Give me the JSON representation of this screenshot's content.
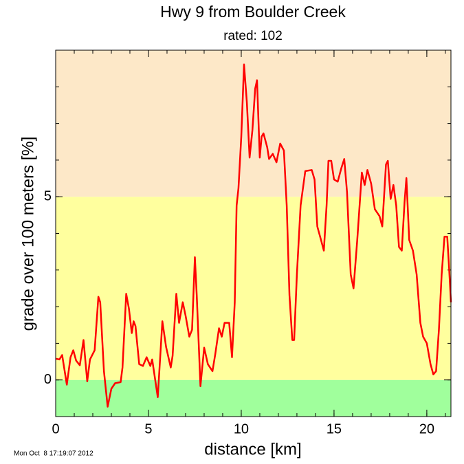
{
  "chart_data": {
    "type": "line",
    "title": "Hwy 9 from Boulder Creek",
    "subtitle": "rated: 102",
    "x_label": "distance [km]",
    "y_label": "grade over 100 meters [%]",
    "timestamp": "Mon Oct  8 17:19:07 2012",
    "xlim": [
      0,
      21.3
    ],
    "ylim": [
      -1,
      9
    ],
    "xticks": [
      0,
      5,
      10,
      15,
      20
    ],
    "yticks": [
      0,
      5
    ],
    "xminorticks": [
      0,
      1,
      2,
      3,
      4,
      5,
      6,
      7,
      8,
      9,
      10,
      11,
      12,
      13,
      14,
      15,
      16,
      17,
      18,
      19,
      20,
      21
    ],
    "yminorticks": [
      -1,
      0,
      1,
      2,
      3,
      4,
      5,
      6,
      7,
      8,
      9
    ],
    "bands": [
      {
        "from": -1,
        "to": 0,
        "color": "#a0ff9c"
      },
      {
        "from": 0,
        "to": 5,
        "color": "#ffff9e"
      },
      {
        "from": 5,
        "to": 9,
        "color": "#fde8c8"
      }
    ],
    "series": [
      {
        "color": "#ff0000",
        "x": [
          0,
          0.2,
          0.35,
          0.6,
          0.8,
          0.95,
          1.1,
          1.3,
          1.5,
          1.7,
          1.85,
          2.1,
          2.3,
          2.4,
          2.6,
          2.8,
          3.0,
          3.2,
          3.5,
          3.6,
          3.8,
          3.95,
          4.1,
          4.2,
          4.3,
          4.5,
          4.7,
          4.9,
          5.1,
          5.2,
          5.4,
          5.5,
          5.75,
          5.95,
          6.2,
          6.3,
          6.5,
          6.65,
          6.85,
          7.0,
          7.2,
          7.35,
          7.5,
          7.6,
          7.8,
          8.0,
          8.2,
          8.45,
          8.6,
          8.8,
          8.95,
          9.1,
          9.35,
          9.5,
          9.65,
          9.75,
          9.85,
          10.0,
          10.15,
          10.3,
          10.45,
          10.6,
          10.75,
          10.85,
          11.0,
          11.1,
          11.2,
          11.4,
          11.5,
          11.7,
          11.9,
          12.1,
          12.3,
          12.45,
          12.6,
          12.75,
          12.85,
          13.0,
          13.2,
          13.45,
          13.8,
          13.95,
          14.1,
          14.3,
          14.45,
          14.6,
          14.7,
          14.85,
          15.0,
          15.2,
          15.4,
          15.55,
          15.7,
          15.9,
          16.05,
          16.25,
          16.5,
          16.65,
          16.8,
          17.0,
          17.2,
          17.45,
          17.6,
          17.8,
          17.9,
          18.05,
          18.2,
          18.35,
          18.5,
          18.65,
          18.8,
          18.9,
          19.05,
          19.25,
          19.45,
          19.65,
          19.8,
          20.0,
          20.2,
          20.35,
          20.5,
          20.65,
          20.8,
          20.95,
          21.1,
          21.2,
          21.3
        ],
        "values": [
          0.58,
          0.56,
          0.68,
          -0.13,
          0.62,
          0.81,
          0.53,
          0.4,
          1.09,
          -0.04,
          0.56,
          0.81,
          2.27,
          2.12,
          0.24,
          -0.73,
          -0.24,
          -0.09,
          -0.06,
          0.34,
          2.35,
          1.94,
          1.28,
          1.6,
          1.47,
          0.43,
          0.38,
          0.62,
          0.38,
          0.56,
          -0.13,
          -0.47,
          1.6,
          0.9,
          0.34,
          0.66,
          2.35,
          1.56,
          2.12,
          1.75,
          1.18,
          1.37,
          3.35,
          2.31,
          -0.17,
          0.88,
          0.43,
          0.24,
          0.71,
          1.41,
          1.18,
          1.56,
          1.56,
          0.62,
          2.12,
          4.76,
          5.23,
          6.64,
          8.61,
          7.58,
          6.07,
          6.82,
          7.95,
          8.18,
          6.07,
          6.64,
          6.73,
          6.35,
          6.03,
          6.17,
          5.94,
          6.45,
          6.26,
          4.76,
          2.31,
          1.09,
          1.09,
          2.88,
          4.76,
          5.7,
          5.73,
          5.47,
          4.19,
          3.82,
          3.53,
          4.76,
          5.98,
          5.98,
          5.47,
          5.41,
          5.79,
          6.03,
          5.13,
          2.88,
          2.5,
          3.82,
          5.66,
          5.32,
          5.73,
          5.36,
          4.66,
          4.47,
          4.19,
          5.88,
          5.98,
          4.94,
          5.32,
          4.76,
          3.63,
          3.53,
          4.85,
          5.51,
          3.82,
          3.53,
          2.88,
          1.56,
          1.18,
          1.0,
          0.43,
          0.15,
          0.24,
          1.37,
          2.88,
          3.91,
          3.91,
          3.06,
          2.12
        ]
      }
    ]
  }
}
